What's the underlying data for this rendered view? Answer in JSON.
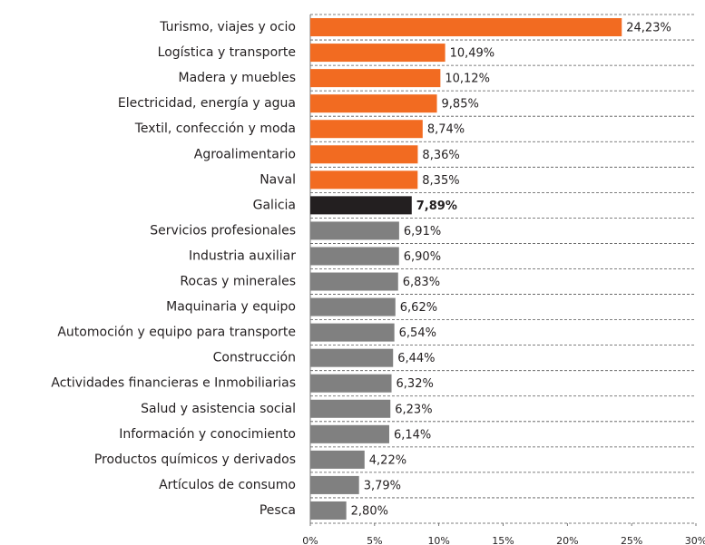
{
  "chart_data": {
    "type": "barh",
    "categories": [
      "Turismo, viajes y ocio",
      "Logística y transporte",
      "Madera y muebles",
      "Electricidad, energía y agua",
      "Textil, confección y moda",
      "Agroalimentario",
      "Naval",
      "Galicia",
      "Servicios profesionales",
      "Industria auxiliar",
      "Rocas y minerales",
      "Maquinaria y equipo",
      "Automoción y equipo para transporte",
      "Construcción",
      "Actividades financieras e Inmobiliarias",
      "Salud y asistencia social",
      "Información y conocimiento",
      "Productos químicos y derivados",
      "Artículos de consumo",
      "Pesca"
    ],
    "values": [
      24.23,
      10.49,
      10.12,
      9.85,
      8.74,
      8.36,
      8.35,
      7.89,
      6.91,
      6.9,
      6.83,
      6.62,
      6.54,
      6.44,
      6.32,
      6.23,
      6.14,
      4.22,
      3.79,
      2.8
    ],
    "value_labels": [
      "24,23%",
      "10,49%",
      "10,12%",
      "9,85%",
      "8,74%",
      "8,36%",
      "8,35%",
      "7,89%",
      "6,91%",
      "6,90%",
      "6,83%",
      "6,62%",
      "6,54%",
      "6,44%",
      "6,32%",
      "6,23%",
      "6,14%",
      "4,22%",
      "3,79%",
      "2,80%"
    ],
    "colors": [
      "#f26b21",
      "#f26b21",
      "#f26b21",
      "#f26b21",
      "#f26b21",
      "#f26b21",
      "#f26b21",
      "#231f20",
      "#808080",
      "#808080",
      "#808080",
      "#808080",
      "#808080",
      "#808080",
      "#808080",
      "#808080",
      "#808080",
      "#808080",
      "#808080",
      "#808080"
    ],
    "highlight": 7,
    "xlim": [
      0,
      30
    ],
    "xticks": [
      {
        "value": 0,
        "label": "0%"
      },
      {
        "value": 5,
        "label": "5%"
      },
      {
        "value": 10,
        "label": "10%"
      },
      {
        "value": 15,
        "label": "15%"
      },
      {
        "value": 20,
        "label": "20%"
      },
      {
        "value": 25,
        "label": "25%"
      },
      {
        "value": 30,
        "label": "30%"
      }
    ]
  }
}
